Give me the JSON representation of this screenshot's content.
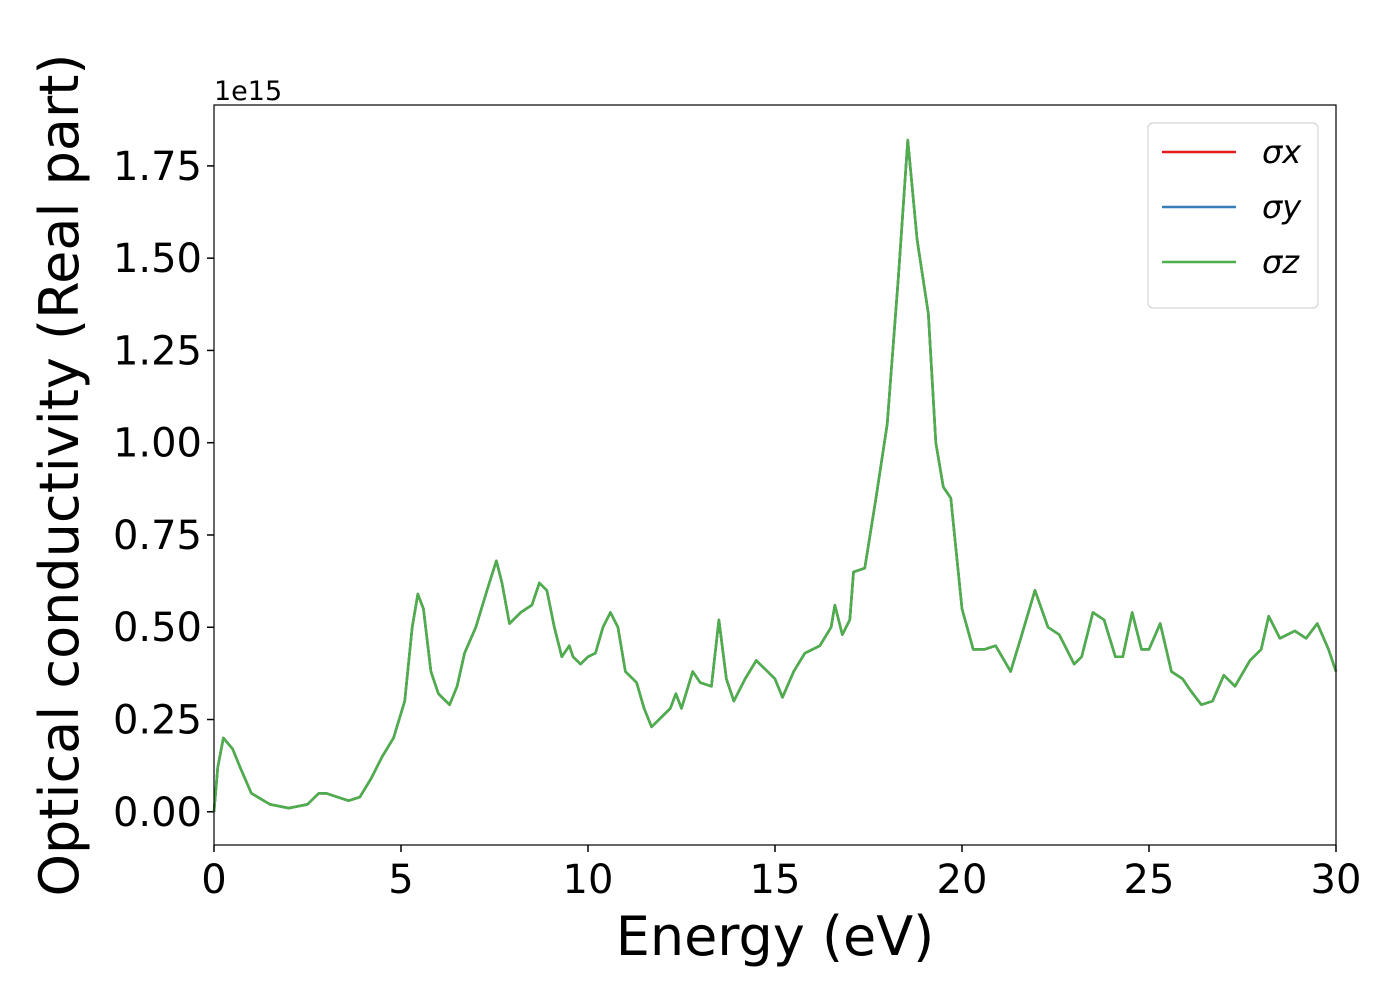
{
  "chart_data": {
    "type": "line",
    "xlabel": "Energy (eV)",
    "ylabel": "Optical conductivity (Real part)",
    "offset_text": "1e15",
    "x": [
      0,
      0.1,
      0.25,
      0.5,
      0.7,
      1.0,
      1.5,
      2.0,
      2.5,
      2.8,
      3.0,
      3.3,
      3.6,
      3.9,
      4.2,
      4.5,
      4.8,
      5.1,
      5.3,
      5.45,
      5.6,
      5.8,
      6.0,
      6.3,
      6.5,
      6.7,
      7.0,
      7.3,
      7.55,
      7.7,
      7.9,
      8.2,
      8.5,
      8.7,
      8.9,
      9.1,
      9.3,
      9.5,
      9.6,
      9.8,
      10.0,
      10.2,
      10.4,
      10.6,
      10.8,
      11.0,
      11.3,
      11.5,
      11.7,
      12.0,
      12.2,
      12.35,
      12.5,
      12.8,
      13.0,
      13.3,
      13.5,
      13.7,
      13.9,
      14.2,
      14.5,
      14.8,
      15.0,
      15.2,
      15.5,
      15.8,
      16.2,
      16.5,
      16.6,
      16.8,
      17.0,
      17.1,
      17.4,
      17.7,
      18.0,
      18.3,
      18.55,
      18.8,
      19.1,
      19.3,
      19.5,
      19.7,
      20.0,
      20.3,
      20.6,
      20.9,
      21.3,
      21.6,
      21.95,
      22.3,
      22.6,
      23.0,
      23.2,
      23.5,
      23.8,
      24.1,
      24.3,
      24.55,
      24.8,
      25.0,
      25.3,
      25.6,
      25.9,
      26.1,
      26.4,
      26.7,
      27.0,
      27.3,
      27.7,
      28.0,
      28.2,
      28.5,
      28.9,
      29.2,
      29.5,
      29.8,
      30.0
    ],
    "series": [
      {
        "name": "σx",
        "color": "#e41a1c",
        "values": [
          0,
          0.12,
          0.2,
          0.17,
          0.12,
          0.05,
          0.02,
          0.01,
          0.02,
          0.05,
          0.05,
          0.04,
          0.03,
          0.04,
          0.09,
          0.15,
          0.2,
          0.3,
          0.5,
          0.59,
          0.55,
          0.38,
          0.32,
          0.29,
          0.34,
          0.43,
          0.5,
          0.6,
          0.68,
          0.62,
          0.51,
          0.54,
          0.56,
          0.62,
          0.6,
          0.5,
          0.42,
          0.45,
          0.42,
          0.4,
          0.42,
          0.43,
          0.5,
          0.54,
          0.5,
          0.38,
          0.35,
          0.28,
          0.23,
          0.26,
          0.28,
          0.32,
          0.28,
          0.38,
          0.35,
          0.34,
          0.52,
          0.36,
          0.3,
          0.36,
          0.41,
          0.38,
          0.36,
          0.31,
          0.38,
          0.43,
          0.45,
          0.5,
          0.56,
          0.48,
          0.52,
          0.65,
          0.66,
          0.85,
          1.05,
          1.45,
          1.82,
          1.55,
          1.35,
          1.0,
          0.88,
          0.85,
          0.55,
          0.44,
          0.44,
          0.45,
          0.38,
          0.48,
          0.6,
          0.5,
          0.48,
          0.4,
          0.42,
          0.54,
          0.52,
          0.42,
          0.42,
          0.54,
          0.44,
          0.44,
          0.51,
          0.38,
          0.36,
          0.33,
          0.29,
          0.3,
          0.37,
          0.34,
          0.41,
          0.44,
          0.53,
          0.47,
          0.49,
          0.47,
          0.51,
          0.44,
          0.38
        ]
      },
      {
        "name": "σy",
        "color": "#377eb8",
        "values": [
          0,
          0.12,
          0.2,
          0.17,
          0.12,
          0.05,
          0.02,
          0.01,
          0.02,
          0.05,
          0.05,
          0.04,
          0.03,
          0.04,
          0.09,
          0.15,
          0.2,
          0.3,
          0.5,
          0.59,
          0.55,
          0.38,
          0.32,
          0.29,
          0.34,
          0.43,
          0.5,
          0.6,
          0.68,
          0.62,
          0.51,
          0.54,
          0.56,
          0.62,
          0.6,
          0.5,
          0.42,
          0.45,
          0.42,
          0.4,
          0.42,
          0.43,
          0.5,
          0.54,
          0.5,
          0.38,
          0.35,
          0.28,
          0.23,
          0.26,
          0.28,
          0.32,
          0.28,
          0.38,
          0.35,
          0.34,
          0.52,
          0.36,
          0.3,
          0.36,
          0.41,
          0.38,
          0.36,
          0.31,
          0.38,
          0.43,
          0.45,
          0.5,
          0.56,
          0.48,
          0.52,
          0.65,
          0.66,
          0.85,
          1.05,
          1.45,
          1.82,
          1.55,
          1.35,
          1.0,
          0.88,
          0.85,
          0.55,
          0.44,
          0.44,
          0.45,
          0.38,
          0.48,
          0.6,
          0.5,
          0.48,
          0.4,
          0.42,
          0.54,
          0.52,
          0.42,
          0.42,
          0.54,
          0.44,
          0.44,
          0.51,
          0.38,
          0.36,
          0.33,
          0.29,
          0.3,
          0.37,
          0.34,
          0.41,
          0.44,
          0.53,
          0.47,
          0.49,
          0.47,
          0.51,
          0.44,
          0.38
        ]
      },
      {
        "name": "σz",
        "color": "#4daf4a",
        "values": [
          0,
          0.12,
          0.2,
          0.17,
          0.12,
          0.05,
          0.02,
          0.01,
          0.02,
          0.05,
          0.05,
          0.04,
          0.03,
          0.04,
          0.09,
          0.15,
          0.2,
          0.3,
          0.5,
          0.59,
          0.55,
          0.38,
          0.32,
          0.29,
          0.34,
          0.43,
          0.5,
          0.6,
          0.68,
          0.62,
          0.51,
          0.54,
          0.56,
          0.62,
          0.6,
          0.5,
          0.42,
          0.45,
          0.42,
          0.4,
          0.42,
          0.43,
          0.5,
          0.54,
          0.5,
          0.38,
          0.35,
          0.28,
          0.23,
          0.26,
          0.28,
          0.32,
          0.28,
          0.38,
          0.35,
          0.34,
          0.52,
          0.36,
          0.3,
          0.36,
          0.41,
          0.38,
          0.36,
          0.31,
          0.38,
          0.43,
          0.45,
          0.5,
          0.56,
          0.48,
          0.52,
          0.65,
          0.66,
          0.85,
          1.05,
          1.45,
          1.82,
          1.55,
          1.35,
          1.0,
          0.88,
          0.85,
          0.55,
          0.44,
          0.44,
          0.45,
          0.38,
          0.48,
          0.6,
          0.5,
          0.48,
          0.4,
          0.42,
          0.54,
          0.52,
          0.42,
          0.42,
          0.54,
          0.44,
          0.44,
          0.51,
          0.38,
          0.36,
          0.33,
          0.29,
          0.3,
          0.37,
          0.34,
          0.41,
          0.44,
          0.53,
          0.47,
          0.49,
          0.47,
          0.51,
          0.44,
          0.38
        ]
      }
    ],
    "xlim": [
      0,
      30
    ],
    "xticks": [
      0,
      5,
      10,
      15,
      20,
      25,
      30
    ],
    "ylim": [
      -0.09,
      1.915
    ],
    "yticks": [
      {
        "value": 0,
        "label": "0.00"
      },
      0.25,
      {
        "value": 0.5,
        "label": "0.50"
      },
      0.75,
      {
        "value": 1,
        "label": "1.00"
      },
      1.25,
      {
        "value": 1.5,
        "label": "1.50"
      },
      1.75
    ],
    "legend": "upper right",
    "grid": false
  }
}
